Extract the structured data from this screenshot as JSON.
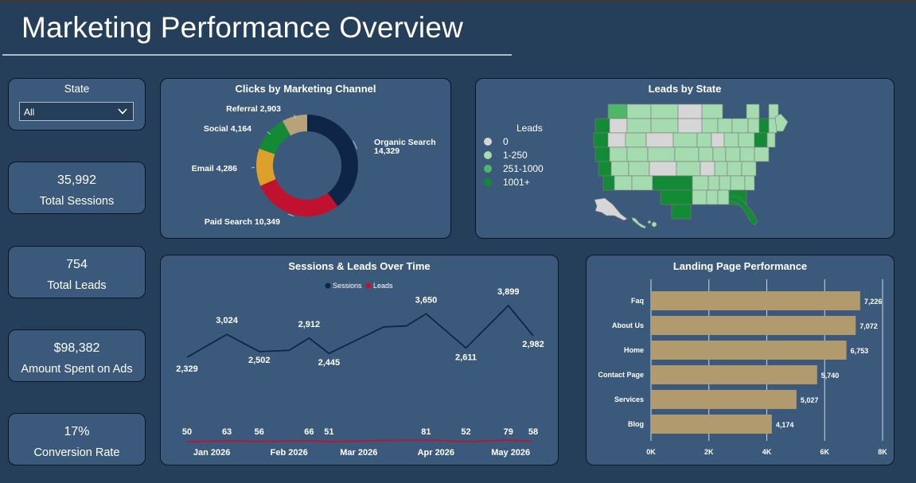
{
  "page": {
    "title": "Marketing Performance Overview"
  },
  "slicer": {
    "label": "State",
    "value": "All",
    "icon": "chevron-down-icon"
  },
  "kpis": [
    {
      "value": "35,992",
      "label": "Total Sessions"
    },
    {
      "value": "754",
      "label": "Total Leads"
    },
    {
      "value": "$98,382",
      "label": "Amount Spent on Ads"
    },
    {
      "value": "17%",
      "label": "Conversion Rate"
    }
  ],
  "chart_data": [
    {
      "type": "pie",
      "variant": "donut",
      "title": "Clicks by Marketing Channel",
      "slices": [
        {
          "label": "Organic Search",
          "display": "14,329",
          "value": 14329,
          "color": "#0f2547"
        },
        {
          "label": "Paid Search",
          "display": "10,349",
          "value": 10349,
          "color": "#c0122f"
        },
        {
          "label": "Email",
          "display": "4,286",
          "value": 4286,
          "color": "#dca02b"
        },
        {
          "label": "Social",
          "display": "4,164",
          "value": 4164,
          "color": "#138a36"
        },
        {
          "label": "Referral",
          "display": "2,903",
          "value": 2903,
          "color": "#b9a27a"
        }
      ]
    },
    {
      "type": "map",
      "title": "Leads by State",
      "legend": {
        "title": "Leads",
        "placement": "left",
        "items": [
          {
            "label": "0",
            "color": "#d6d6d6"
          },
          {
            "label": "1-250",
            "color": "#a4dcb0"
          },
          {
            "label": "251-1000",
            "color": "#4fb868"
          },
          {
            "label": "1001+",
            "color": "#138a36"
          }
        ]
      }
    },
    {
      "type": "line",
      "title": "Sessions & Leads Over Time",
      "legend": {
        "placement": "top-center"
      },
      "x": [
        "2025-12-23",
        "2026-01-08",
        "2026-01-21",
        "2026-02-02",
        "2026-02-10",
        "2026-02-18",
        "2026-03-12",
        "2026-03-21",
        "2026-03-29",
        "2026-04-14",
        "2026-05-01",
        "2026-05-11"
      ],
      "x_ticks": [
        "Jan 2026",
        "Feb 2026",
        "Mar 2026",
        "Apr 2026",
        "May 2026"
      ],
      "series": [
        {
          "name": "Sessions",
          "color": "#0f2547",
          "values": [
            2329,
            3024,
            2502,
            2540,
            2912,
            2445,
            3250,
            3280,
            3650,
            2611,
            3899,
            2982
          ],
          "labels": [
            "2,329",
            "3,024",
            "2,502",
            null,
            "2,912",
            "2,445",
            null,
            null,
            "3,650",
            "2,611",
            "3,899",
            "2,982"
          ]
        },
        {
          "name": "Leads",
          "color": "#c0122f",
          "values": [
            50,
            63,
            56,
            60,
            66,
            51,
            70,
            75,
            81,
            52,
            79,
            58
          ],
          "labels": [
            "50",
            "63",
            "56",
            null,
            "66",
            "51",
            null,
            null,
            "81",
            "52",
            "79",
            "58"
          ]
        }
      ]
    },
    {
      "type": "bar",
      "orientation": "horizontal",
      "title": "Landing Page Performance",
      "categories": [
        "Faq",
        "About Us",
        "Home",
        "Contact Page",
        "Services",
        "Blog"
      ],
      "values": [
        7226,
        7072,
        6753,
        5740,
        5027,
        4174
      ],
      "value_labels": [
        "7,226",
        "7,072",
        "6,753",
        "5,740",
        "5,027",
        "4,174"
      ],
      "xlim": [
        0,
        8000
      ],
      "x_ticks": [
        0,
        2000,
        4000,
        6000,
        8000
      ],
      "x_tick_labels": [
        "0K",
        "2K",
        "4K",
        "6K",
        "8K"
      ],
      "grid": true,
      "bar_color": "#b09a6e"
    }
  ]
}
